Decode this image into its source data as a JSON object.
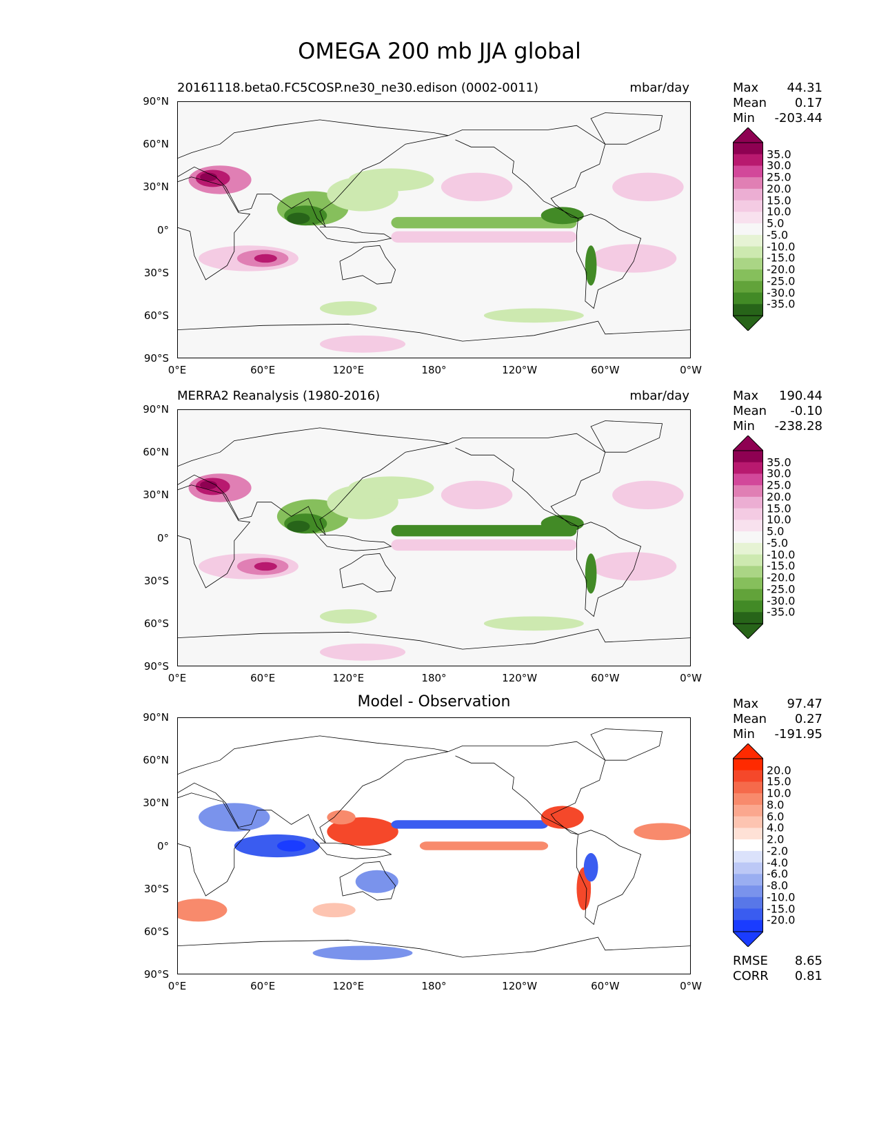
{
  "suptitle": "OMEGA 200 mb JJA global",
  "yticks": [
    "90°N",
    "60°N",
    "30°N",
    "0°",
    "30°S",
    "60°S",
    "90°S"
  ],
  "xticks": [
    "0°E",
    "60°E",
    "120°E",
    "180°",
    "120°W",
    "60°W",
    "0°W"
  ],
  "panels": [
    {
      "title_left": "20161118.beta0.FC5COSP.ne30_ne30.edison (0002-0011)",
      "title_right": "mbar/day",
      "title_center": "",
      "stats": {
        "max_label": "Max",
        "max": "44.31",
        "mean_label": "Mean",
        "mean": "0.17",
        "min_label": "Min",
        "min": "-203.44"
      },
      "colorbar": {
        "labels": [
          "35.0",
          "30.0",
          "25.0",
          "20.0",
          "15.0",
          "10.0",
          "5.0",
          "-5.0",
          "-10.0",
          "-15.0",
          "-20.0",
          "-25.0",
          "-30.0",
          "-35.0"
        ],
        "colors": [
          "#8e0152",
          "#b8196f",
          "#d2489a",
          "#e07fb4",
          "#ecaed3",
          "#f4cbe3",
          "#f8e1ee",
          "#f7f7f7",
          "#e6f3d4",
          "#cde9b0",
          "#aad585",
          "#86bf5c",
          "#62a33a",
          "#428a26",
          "#276419"
        ],
        "top_color": "#8e0152",
        "bottom_color": "#276419"
      }
    },
    {
      "title_left": "MERRA2 Reanalysis (1980-2016)",
      "title_right": "mbar/day",
      "title_center": "",
      "stats": {
        "max_label": "Max",
        "max": "190.44",
        "mean_label": "Mean",
        "mean": "-0.10",
        "min_label": "Min",
        "min": "-238.28"
      },
      "colorbar": {
        "labels": [
          "35.0",
          "30.0",
          "25.0",
          "20.0",
          "15.0",
          "10.0",
          "5.0",
          "-5.0",
          "-10.0",
          "-15.0",
          "-20.0",
          "-25.0",
          "-30.0",
          "-35.0"
        ],
        "colors": [
          "#8e0152",
          "#b8196f",
          "#d2489a",
          "#e07fb4",
          "#ecaed3",
          "#f4cbe3",
          "#f8e1ee",
          "#f7f7f7",
          "#e6f3d4",
          "#cde9b0",
          "#aad585",
          "#86bf5c",
          "#62a33a",
          "#428a26",
          "#276419"
        ],
        "top_color": "#8e0152",
        "bottom_color": "#276419"
      }
    },
    {
      "title_left": "",
      "title_right": "",
      "title_center": "Model - Observation",
      "stats": {
        "max_label": "Max",
        "max": "97.47",
        "mean_label": "Mean",
        "mean": "0.27",
        "min_label": "Min",
        "min": "-191.95"
      },
      "colorbar": {
        "labels": [
          "20.0",
          "15.0",
          "10.0",
          "8.0",
          "6.0",
          "4.0",
          "2.0",
          "-2.0",
          "-4.0",
          "-6.0",
          "-8.0",
          "-10.0",
          "-15.0",
          "-20.0"
        ],
        "colors": [
          "#ff2a00",
          "#f5482a",
          "#f56a4b",
          "#f88a6c",
          "#fba78e",
          "#fdc4b1",
          "#fee1d6",
          "#ffffff",
          "#dbe2fb",
          "#bcc8f6",
          "#9aaef1",
          "#7a93ec",
          "#5877e8",
          "#3a5cf0",
          "#1a3cff"
        ],
        "top_color": "#ff2a00",
        "bottom_color": "#1a3cff"
      },
      "rmse_label": "RMSE",
      "rmse": "8.65",
      "corr_label": "CORR",
      "corr": "0.81"
    }
  ]
}
